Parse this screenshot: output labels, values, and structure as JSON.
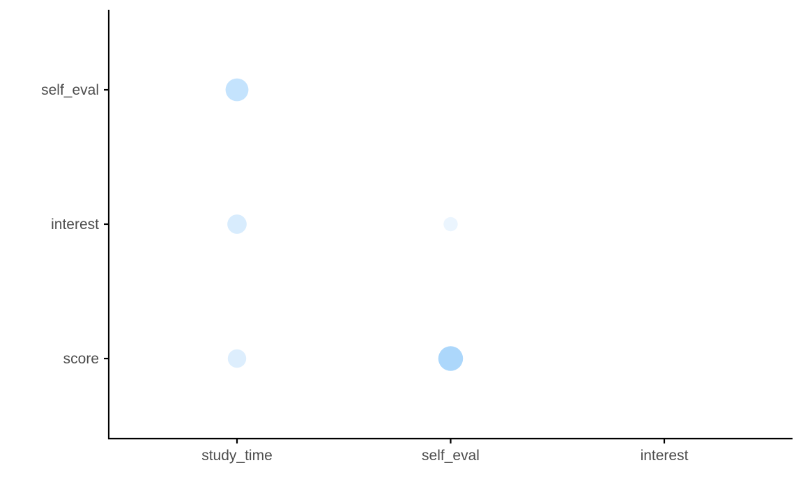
{
  "chart_data": {
    "type": "scatter",
    "title": "",
    "xlabel": "",
    "ylabel": "",
    "x_categories": [
      "study_time",
      "self_eval",
      "interest"
    ],
    "y_categories": [
      "score",
      "interest",
      "self_eval"
    ],
    "grid": false,
    "legend": "none",
    "points": [
      {
        "x": "study_time",
        "y": "self_eval",
        "value": 0.58,
        "color": "#c4e3fd"
      },
      {
        "x": "study_time",
        "y": "interest",
        "value": 0.35,
        "color": "#d8ecfd"
      },
      {
        "x": "self_eval",
        "y": "interest",
        "value": 0.12,
        "color": "#ebf5fe"
      },
      {
        "x": "study_time",
        "y": "score",
        "value": 0.3,
        "color": "#ddeefd"
      },
      {
        "x": "self_eval",
        "y": "score",
        "value": 0.72,
        "color": "#acd7fb"
      }
    ]
  }
}
